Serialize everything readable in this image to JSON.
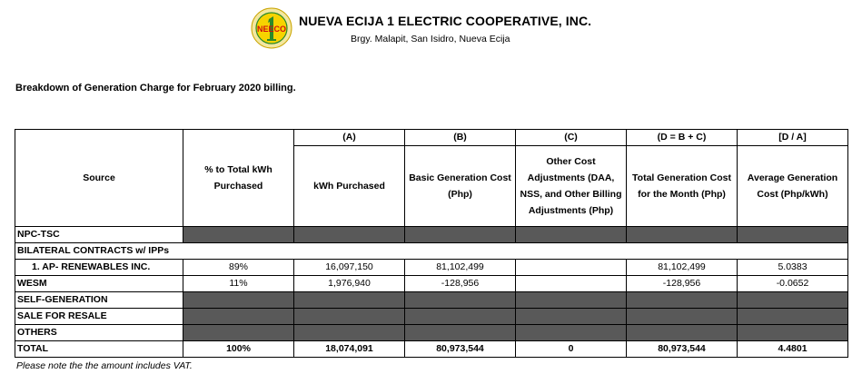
{
  "header": {
    "org_name": "NUEVA ECIJA 1 ELECTRIC COOPERATIVE, INC.",
    "address": "Brgy. Malapit, San Isidro, Nueva Ecija",
    "logo_text": "NEECO"
  },
  "title": "Breakdown of Generation Charge  for February 2020 billing.",
  "table": {
    "col_codes": [
      "(A)",
      "(B)",
      "(C)",
      "(D = B + C)",
      "[D / A]"
    ],
    "headers": [
      "Source",
      "% to Total kWh Purchased",
      "kWh Purchased",
      "Basic Generation Cost (Php)",
      "Other Cost Adjustments (DAA, NSS, and Other Billing Adjustments (Php)",
      "Total Generation Cost for the Month (Php)",
      "Average Generation Cost (Php/kWh)"
    ],
    "rows": {
      "npc": "NPC-TSC",
      "bilateral": "BILATERAL CONTRACTS w/ IPPs",
      "ap": [
        "1. AP- RENEWABLES INC.",
        "89%",
        "16,097,150",
        "81,102,499",
        "",
        "81,102,499",
        "5.0383"
      ],
      "wesm": [
        "WESM",
        "11%",
        "1,976,940",
        "-128,956",
        "",
        "-128,956",
        "-0.0652"
      ],
      "self": "SELF-GENERATION",
      "sale": "SALE FOR RESALE",
      "others": "OTHERS",
      "total": [
        "TOTAL",
        "100%",
        "18,074,091",
        "80,973,544",
        "0",
        "80,973,544",
        "4.4801"
      ]
    }
  },
  "note": "Please note the the amount includes VAT."
}
